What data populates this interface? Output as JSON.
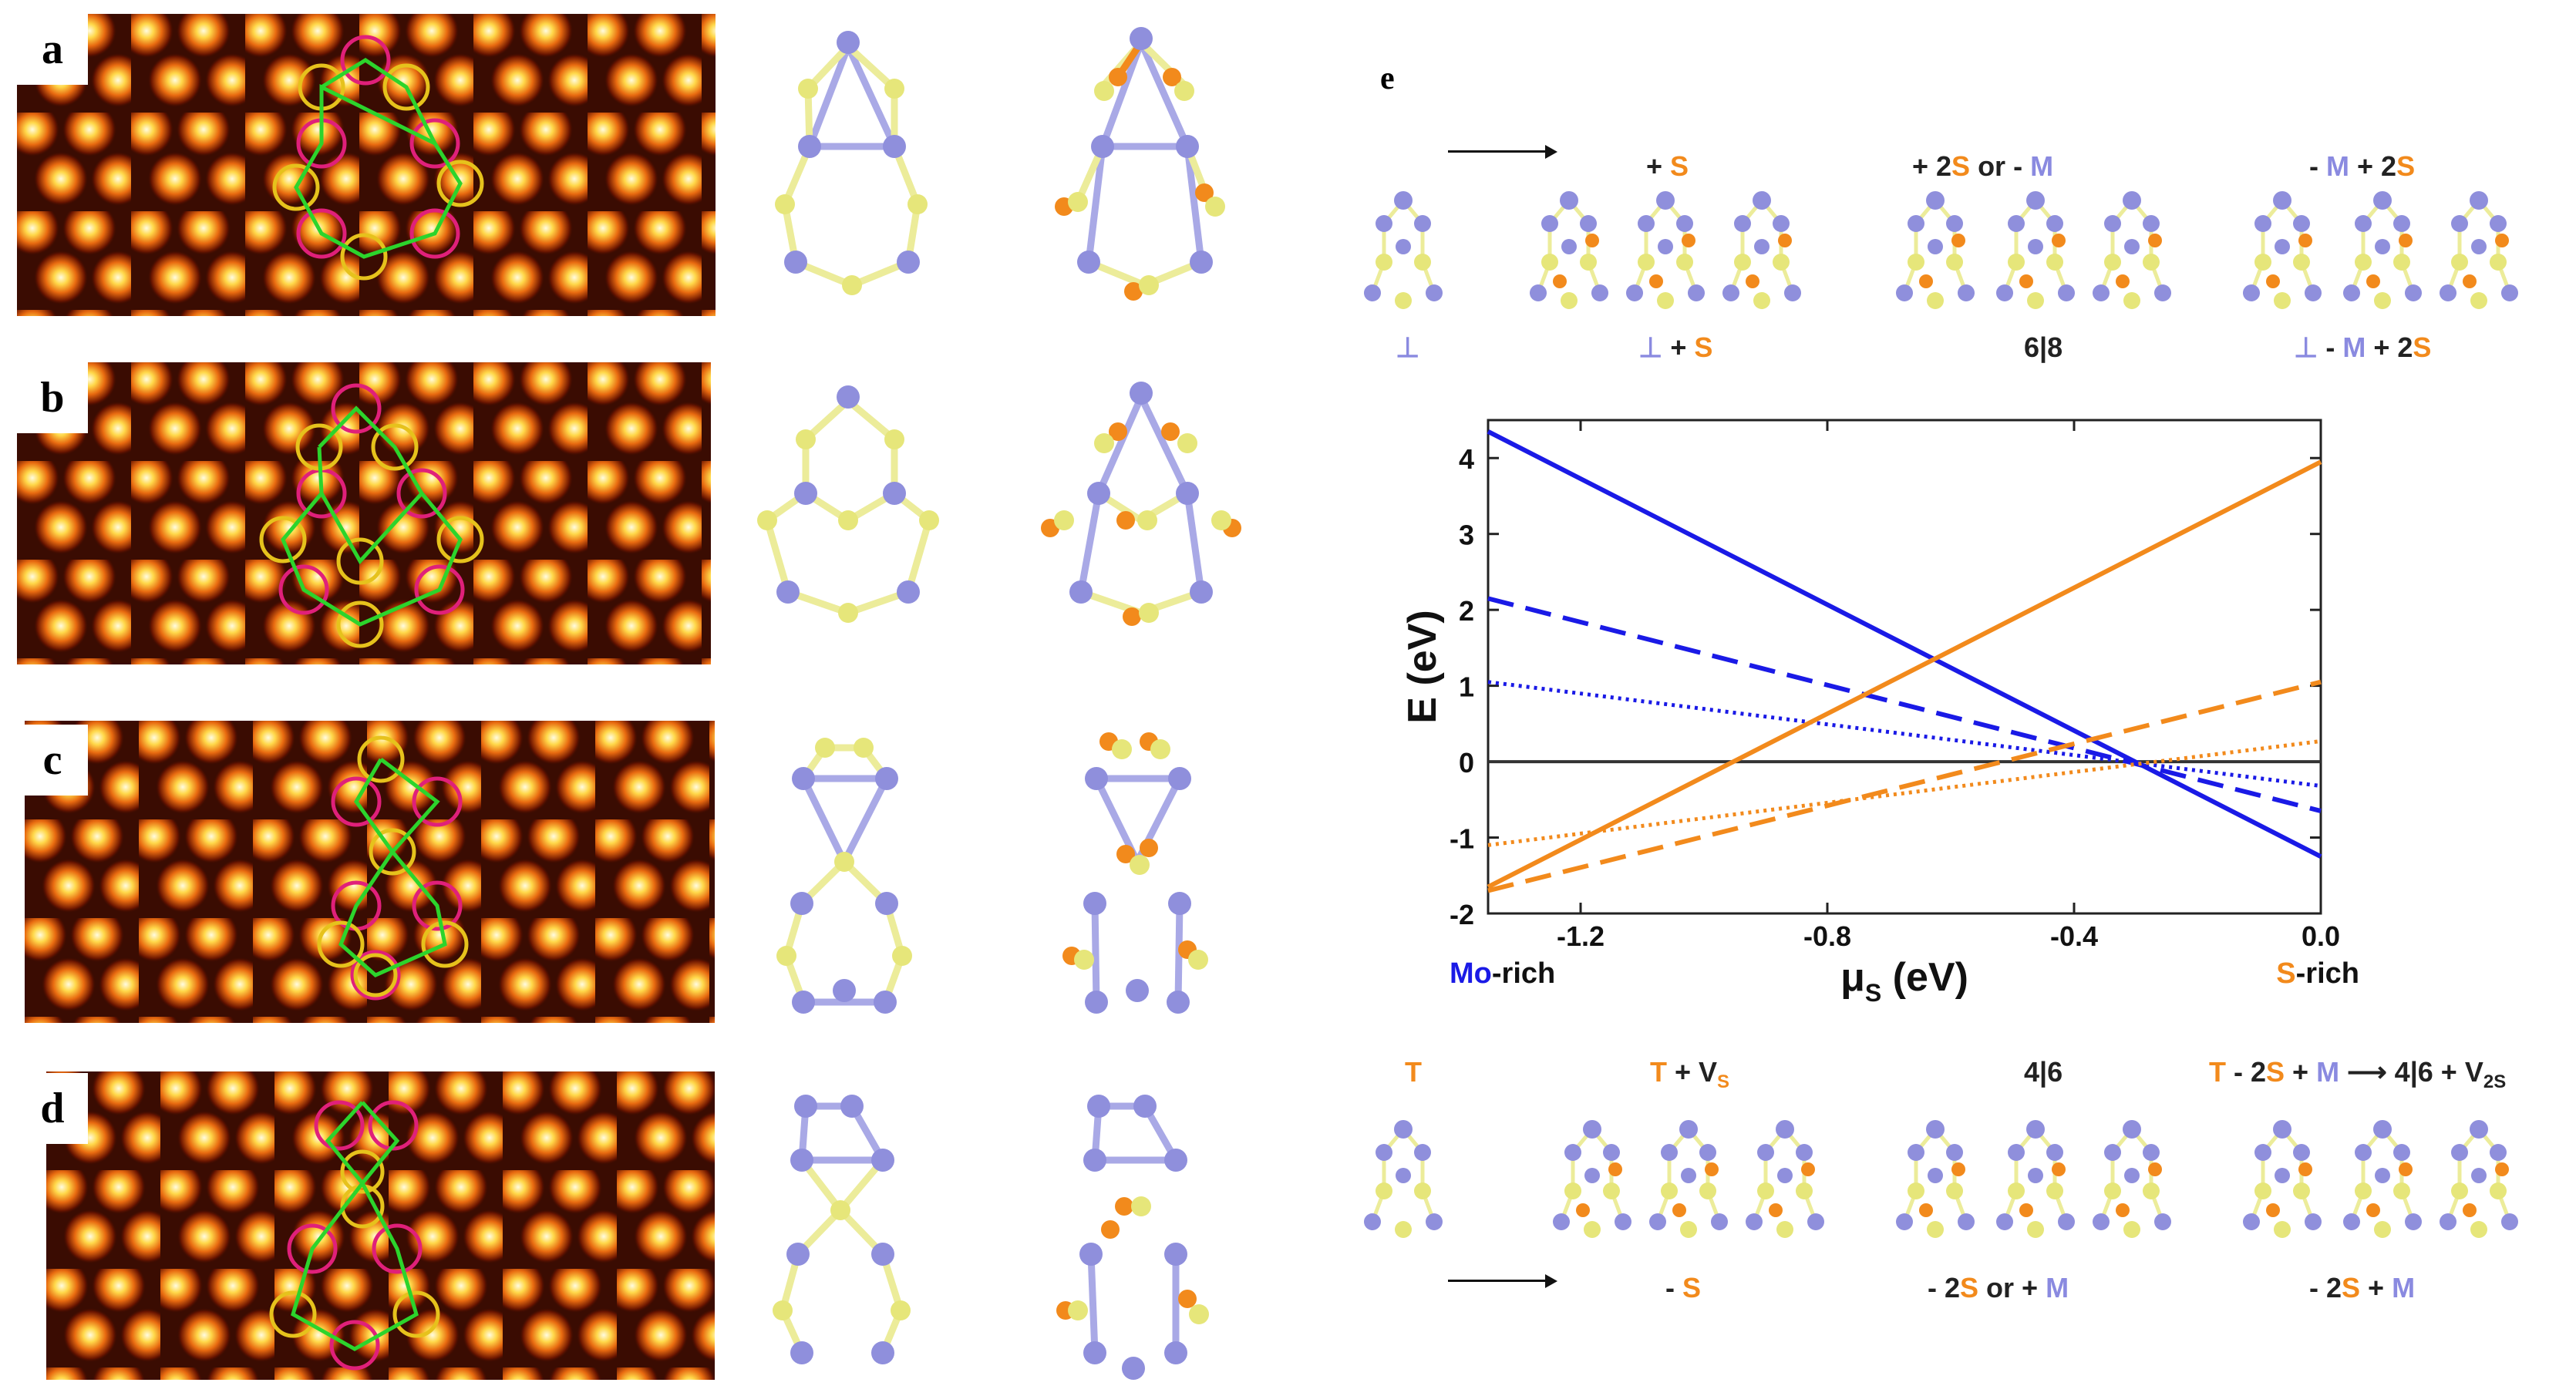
{
  "panels": {
    "a": "a",
    "b": "b",
    "c": "c",
    "d": "d",
    "e": "e"
  },
  "top_row": {
    "g1_top": [
      "+ ",
      "S"
    ],
    "g1_bottom": [
      "⊥",
      " + ",
      "S"
    ],
    "left_symbol": "⊥",
    "g2_top": [
      "+ 2",
      "S",
      " or - ",
      "M"
    ],
    "g2_bottom": "6|8",
    "g3_top": [
      "- ",
      "M",
      " + 2",
      "S"
    ],
    "g3_bottom": [
      "⊥",
      " - ",
      "M",
      " + 2",
      "S"
    ]
  },
  "bottom_row": {
    "left_symbol": "T",
    "g1_top": [
      "T",
      " + V",
      "S"
    ],
    "g1_bottom": [
      "- ",
      "S"
    ],
    "g2_top": "4|6",
    "g2_bottom": [
      "- 2",
      "S",
      " or + ",
      "M"
    ],
    "g3_top": [
      "T",
      " - 2",
      "S",
      " + ",
      "M",
      " ⟶ 4|6 + V",
      "2S"
    ],
    "g3_bottom": [
      "- 2",
      "S",
      " + ",
      "M"
    ]
  },
  "chart_data": {
    "type": "line",
    "xlabel_mu": "μ",
    "xlabel_sub": "S",
    "xlabel_unit": " (eV)",
    "ylabel": "E (eV)",
    "xlim": [
      -1.35,
      0.0
    ],
    "ylim": [
      -2,
      4.5
    ],
    "xticks": [
      -1.2,
      -0.8,
      -0.4,
      0.0
    ],
    "xtick_labels": [
      "-1.2",
      "-0.8",
      "-0.4",
      "0.0"
    ],
    "yticks": [
      -2,
      -1,
      0,
      1,
      2,
      3,
      4
    ],
    "ytick_labels": [
      "-2",
      "-1",
      "0",
      "1",
      "2",
      "3",
      "4"
    ],
    "left_annotation": [
      "Mo",
      "-rich"
    ],
    "right_annotation": [
      "S",
      "-rich"
    ],
    "colors": {
      "blue": "#1a1ae6",
      "orange": "#f28a1c",
      "zero": "#333333"
    },
    "series": [
      {
        "name": "blue-solid",
        "color": "blue",
        "dash": "solid",
        "x": [
          -1.35,
          0.0
        ],
        "y": [
          4.35,
          -1.25
        ]
      },
      {
        "name": "blue-dashed",
        "color": "blue",
        "dash": "dashed",
        "x": [
          -1.35,
          0.0
        ],
        "y": [
          2.15,
          -0.65
        ]
      },
      {
        "name": "blue-dotted",
        "color": "blue",
        "dash": "dotted",
        "x": [
          -1.35,
          0.0
        ],
        "y": [
          1.05,
          -0.32
        ]
      },
      {
        "name": "orange-solid",
        "color": "orange",
        "dash": "solid",
        "x": [
          -1.35,
          0.0
        ],
        "y": [
          -1.65,
          3.95
        ]
      },
      {
        "name": "orange-dashed",
        "color": "orange",
        "dash": "dashed",
        "x": [
          -1.35,
          0.0
        ],
        "y": [
          -1.7,
          1.05
        ]
      },
      {
        "name": "orange-dotted",
        "color": "orange",
        "dash": "dotted",
        "x": [
          -1.35,
          0.0
        ],
        "y": [
          -1.1,
          0.27
        ]
      }
    ]
  }
}
